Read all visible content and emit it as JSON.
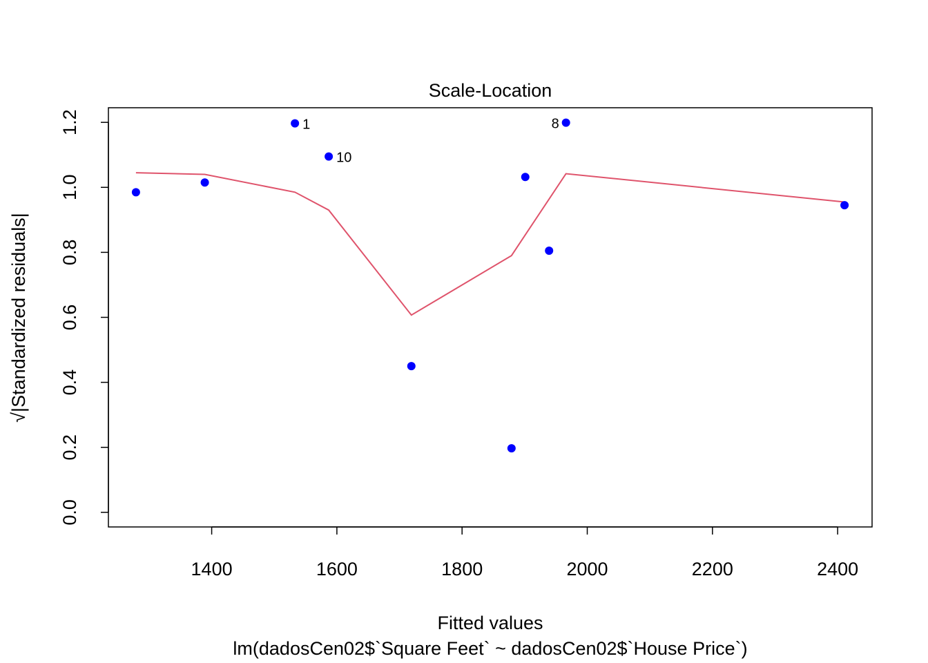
{
  "chart_data": {
    "type": "scatter",
    "title": "Scale-Location",
    "xlabel": "Fitted values",
    "xlabel_sub": "lm(dadosCen02$`Square Feet` ~ dadosCen02$`House Price`)",
    "ylabel_radical": "√",
    "ylabel": "|Standardized residuals|",
    "xlim": [
      1235,
      2455
    ],
    "ylim": [
      -0.045,
      1.245
    ],
    "x_ticks": [
      1400,
      1600,
      1800,
      2000,
      2200,
      2400
    ],
    "x_tick_labels": [
      "1400",
      "1600",
      "1800",
      "2000",
      "2200",
      "2400"
    ],
    "y_ticks": [
      0.0,
      0.2,
      0.4,
      0.6,
      0.8,
      1.0,
      1.2
    ],
    "y_tick_labels": [
      "0.0",
      "0.2",
      "0.4",
      "0.6",
      "0.8",
      "1.0",
      "1.2"
    ],
    "grid": false,
    "point_color": "#0000ff",
    "smooth_color": "#df536b",
    "points": [
      {
        "x": 1279,
        "y": 0.985,
        "label": ""
      },
      {
        "x": 1389,
        "y": 1.015,
        "label": ""
      },
      {
        "x": 1533,
        "y": 1.197,
        "label": "1"
      },
      {
        "x": 1587,
        "y": 1.095,
        "label": "10"
      },
      {
        "x": 1719,
        "y": 0.45,
        "label": ""
      },
      {
        "x": 1879,
        "y": 0.197,
        "label": ""
      },
      {
        "x": 1901,
        "y": 1.032,
        "label": ""
      },
      {
        "x": 1939,
        "y": 0.805,
        "label": ""
      },
      {
        "x": 1966,
        "y": 1.199,
        "label": "8"
      },
      {
        "x": 2411,
        "y": 0.945,
        "label": ""
      }
    ],
    "smooth_line": [
      {
        "x": 1279,
        "y": 1.045
      },
      {
        "x": 1389,
        "y": 1.04
      },
      {
        "x": 1533,
        "y": 0.985
      },
      {
        "x": 1587,
        "y": 0.93
      },
      {
        "x": 1719,
        "y": 0.607
      },
      {
        "x": 1879,
        "y": 0.79
      },
      {
        "x": 1966,
        "y": 1.042
      },
      {
        "x": 2411,
        "y": 0.955
      }
    ]
  }
}
